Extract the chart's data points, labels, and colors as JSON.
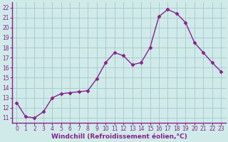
{
  "x": [
    0,
    1,
    2,
    3,
    4,
    5,
    6,
    7,
    8,
    9,
    10,
    11,
    12,
    13,
    14,
    15,
    16,
    17,
    18,
    19,
    20,
    21,
    22,
    23
  ],
  "y": [
    12.5,
    11.1,
    11.0,
    11.6,
    13.0,
    13.4,
    13.5,
    13.6,
    13.7,
    14.9,
    16.5,
    17.5,
    17.2,
    16.3,
    16.5,
    18.0,
    21.1,
    21.8,
    21.4,
    20.5,
    18.5,
    17.5,
    16.5,
    15.6
  ],
  "line_color": "#882288",
  "marker": "D",
  "markersize": 2.5,
  "linewidth": 1.0,
  "xlabel": "Windchill (Refroidissement éolien,°C)",
  "xlabel_color": "#882288",
  "bg_color": "#d0eaea",
  "grid_color": "#aacccc",
  "spine_color": "#882288",
  "yticks": [
    11,
    12,
    13,
    14,
    15,
    16,
    17,
    18,
    19,
    20,
    21,
    22
  ],
  "xticks": [
    0,
    1,
    2,
    3,
    4,
    5,
    6,
    7,
    8,
    9,
    10,
    11,
    12,
    13,
    14,
    15,
    16,
    17,
    18,
    19,
    20,
    21,
    22,
    23
  ],
  "ylim": [
    10.5,
    22.5
  ],
  "xlim": [
    -0.5,
    23.5
  ],
  "tick_color": "#882288",
  "tick_fontsize": 5.5,
  "xlabel_fontsize": 6.5
}
